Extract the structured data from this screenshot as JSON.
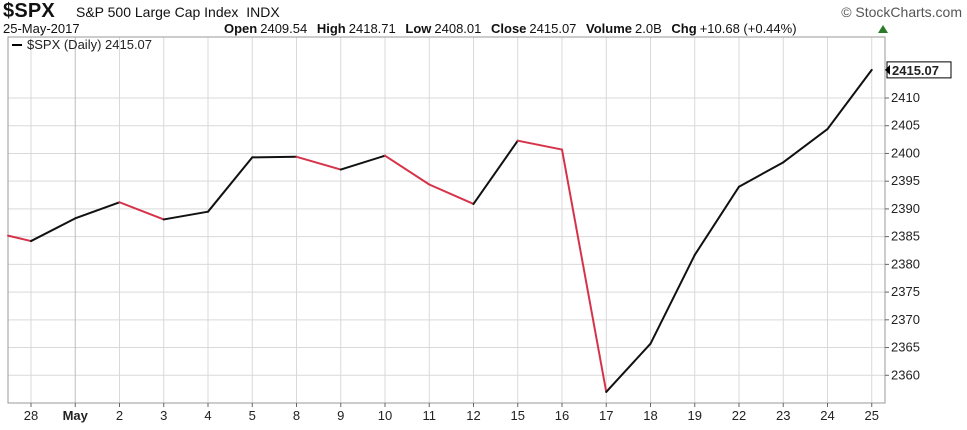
{
  "header": {
    "symbol": "$SPX",
    "name": "S&P 500 Large Cap Index",
    "exchange": "INDX",
    "date": "25-May-2017",
    "open_label": "Open",
    "open": "2409.54",
    "high_label": "High",
    "high": "2418.71",
    "low_label": "Low",
    "low": "2408.01",
    "close_label": "Close",
    "close": "2415.07",
    "volume_label": "Volume",
    "volume": "2.0B",
    "chg_label": "Chg",
    "chg": "+10.68 (+0.44%)",
    "brand": "© StockCharts.com"
  },
  "colors": {
    "up": "#111111",
    "down": "#d6334a",
    "grid": "#d9d9d9",
    "label_box": "#000000"
  },
  "chart_data": {
    "type": "line",
    "legend": "$SPX (Daily) 2415.07",
    "last_value_label": "2415.07",
    "ylim": [
      2355.0,
      2421.0
    ],
    "y_ticks": [
      2360,
      2365,
      2370,
      2375,
      2380,
      2385,
      2390,
      2395,
      2400,
      2405,
      2410
    ],
    "categories": [
      "28",
      "May",
      "2",
      "3",
      "4",
      "5",
      "8",
      "9",
      "10",
      "11",
      "12",
      "15",
      "16",
      "17",
      "18",
      "19",
      "22",
      "23",
      "24",
      "25"
    ],
    "prior_value": 2386.1,
    "values": [
      2384.2,
      2388.3,
      2391.2,
      2388.1,
      2389.5,
      2399.3,
      2399.4,
      2397.1,
      2399.6,
      2394.4,
      2390.9,
      2402.3,
      2400.7,
      2357.0,
      2365.7,
      2381.7,
      2394.0,
      2398.4,
      2404.4,
      2415.07
    ],
    "grid": true
  }
}
